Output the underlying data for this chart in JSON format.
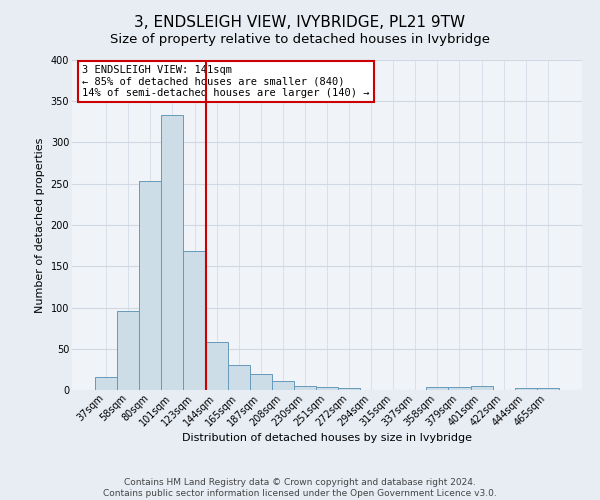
{
  "title": "3, ENDSLEIGH VIEW, IVYBRIDGE, PL21 9TW",
  "subtitle": "Size of property relative to detached houses in Ivybridge",
  "xlabel": "Distribution of detached houses by size in Ivybridge",
  "ylabel": "Number of detached properties",
  "bar_labels": [
    "37sqm",
    "58sqm",
    "80sqm",
    "101sqm",
    "123sqm",
    "144sqm",
    "165sqm",
    "187sqm",
    "208sqm",
    "230sqm",
    "251sqm",
    "272sqm",
    "294sqm",
    "315sqm",
    "337sqm",
    "358sqm",
    "379sqm",
    "401sqm",
    "422sqm",
    "444sqm",
    "465sqm"
  ],
  "bar_values": [
    16,
    96,
    253,
    333,
    168,
    58,
    30,
    19,
    11,
    5,
    4,
    3,
    0,
    0,
    0,
    4,
    4,
    5,
    0,
    3,
    3
  ],
  "bar_color": "#ccdde8",
  "bar_edge_color": "#6699bb",
  "vline_x_idx": 5,
  "vline_color": "#cc0000",
  "annotation_line1": "3 ENDSLEIGH VIEW: 141sqm",
  "annotation_line2": "← 85% of detached houses are smaller (840)",
  "annotation_line3": "14% of semi-detached houses are larger (140) →",
  "annotation_box_color": "#cc0000",
  "ylim": [
    0,
    400
  ],
  "yticks": [
    0,
    50,
    100,
    150,
    200,
    250,
    300,
    350,
    400
  ],
  "footer1": "Contains HM Land Registry data © Crown copyright and database right 2024.",
  "footer2": "Contains public sector information licensed under the Open Government Licence v3.0.",
  "bg_color": "#e8edf4",
  "plot_bg_color": "#f0f4f8",
  "grid_color": "#d0d8e4",
  "title_fontsize": 11,
  "subtitle_fontsize": 9.5,
  "axis_label_fontsize": 8,
  "tick_fontsize": 7,
  "annotation_fontsize": 7.5,
  "footer_fontsize": 6.5
}
